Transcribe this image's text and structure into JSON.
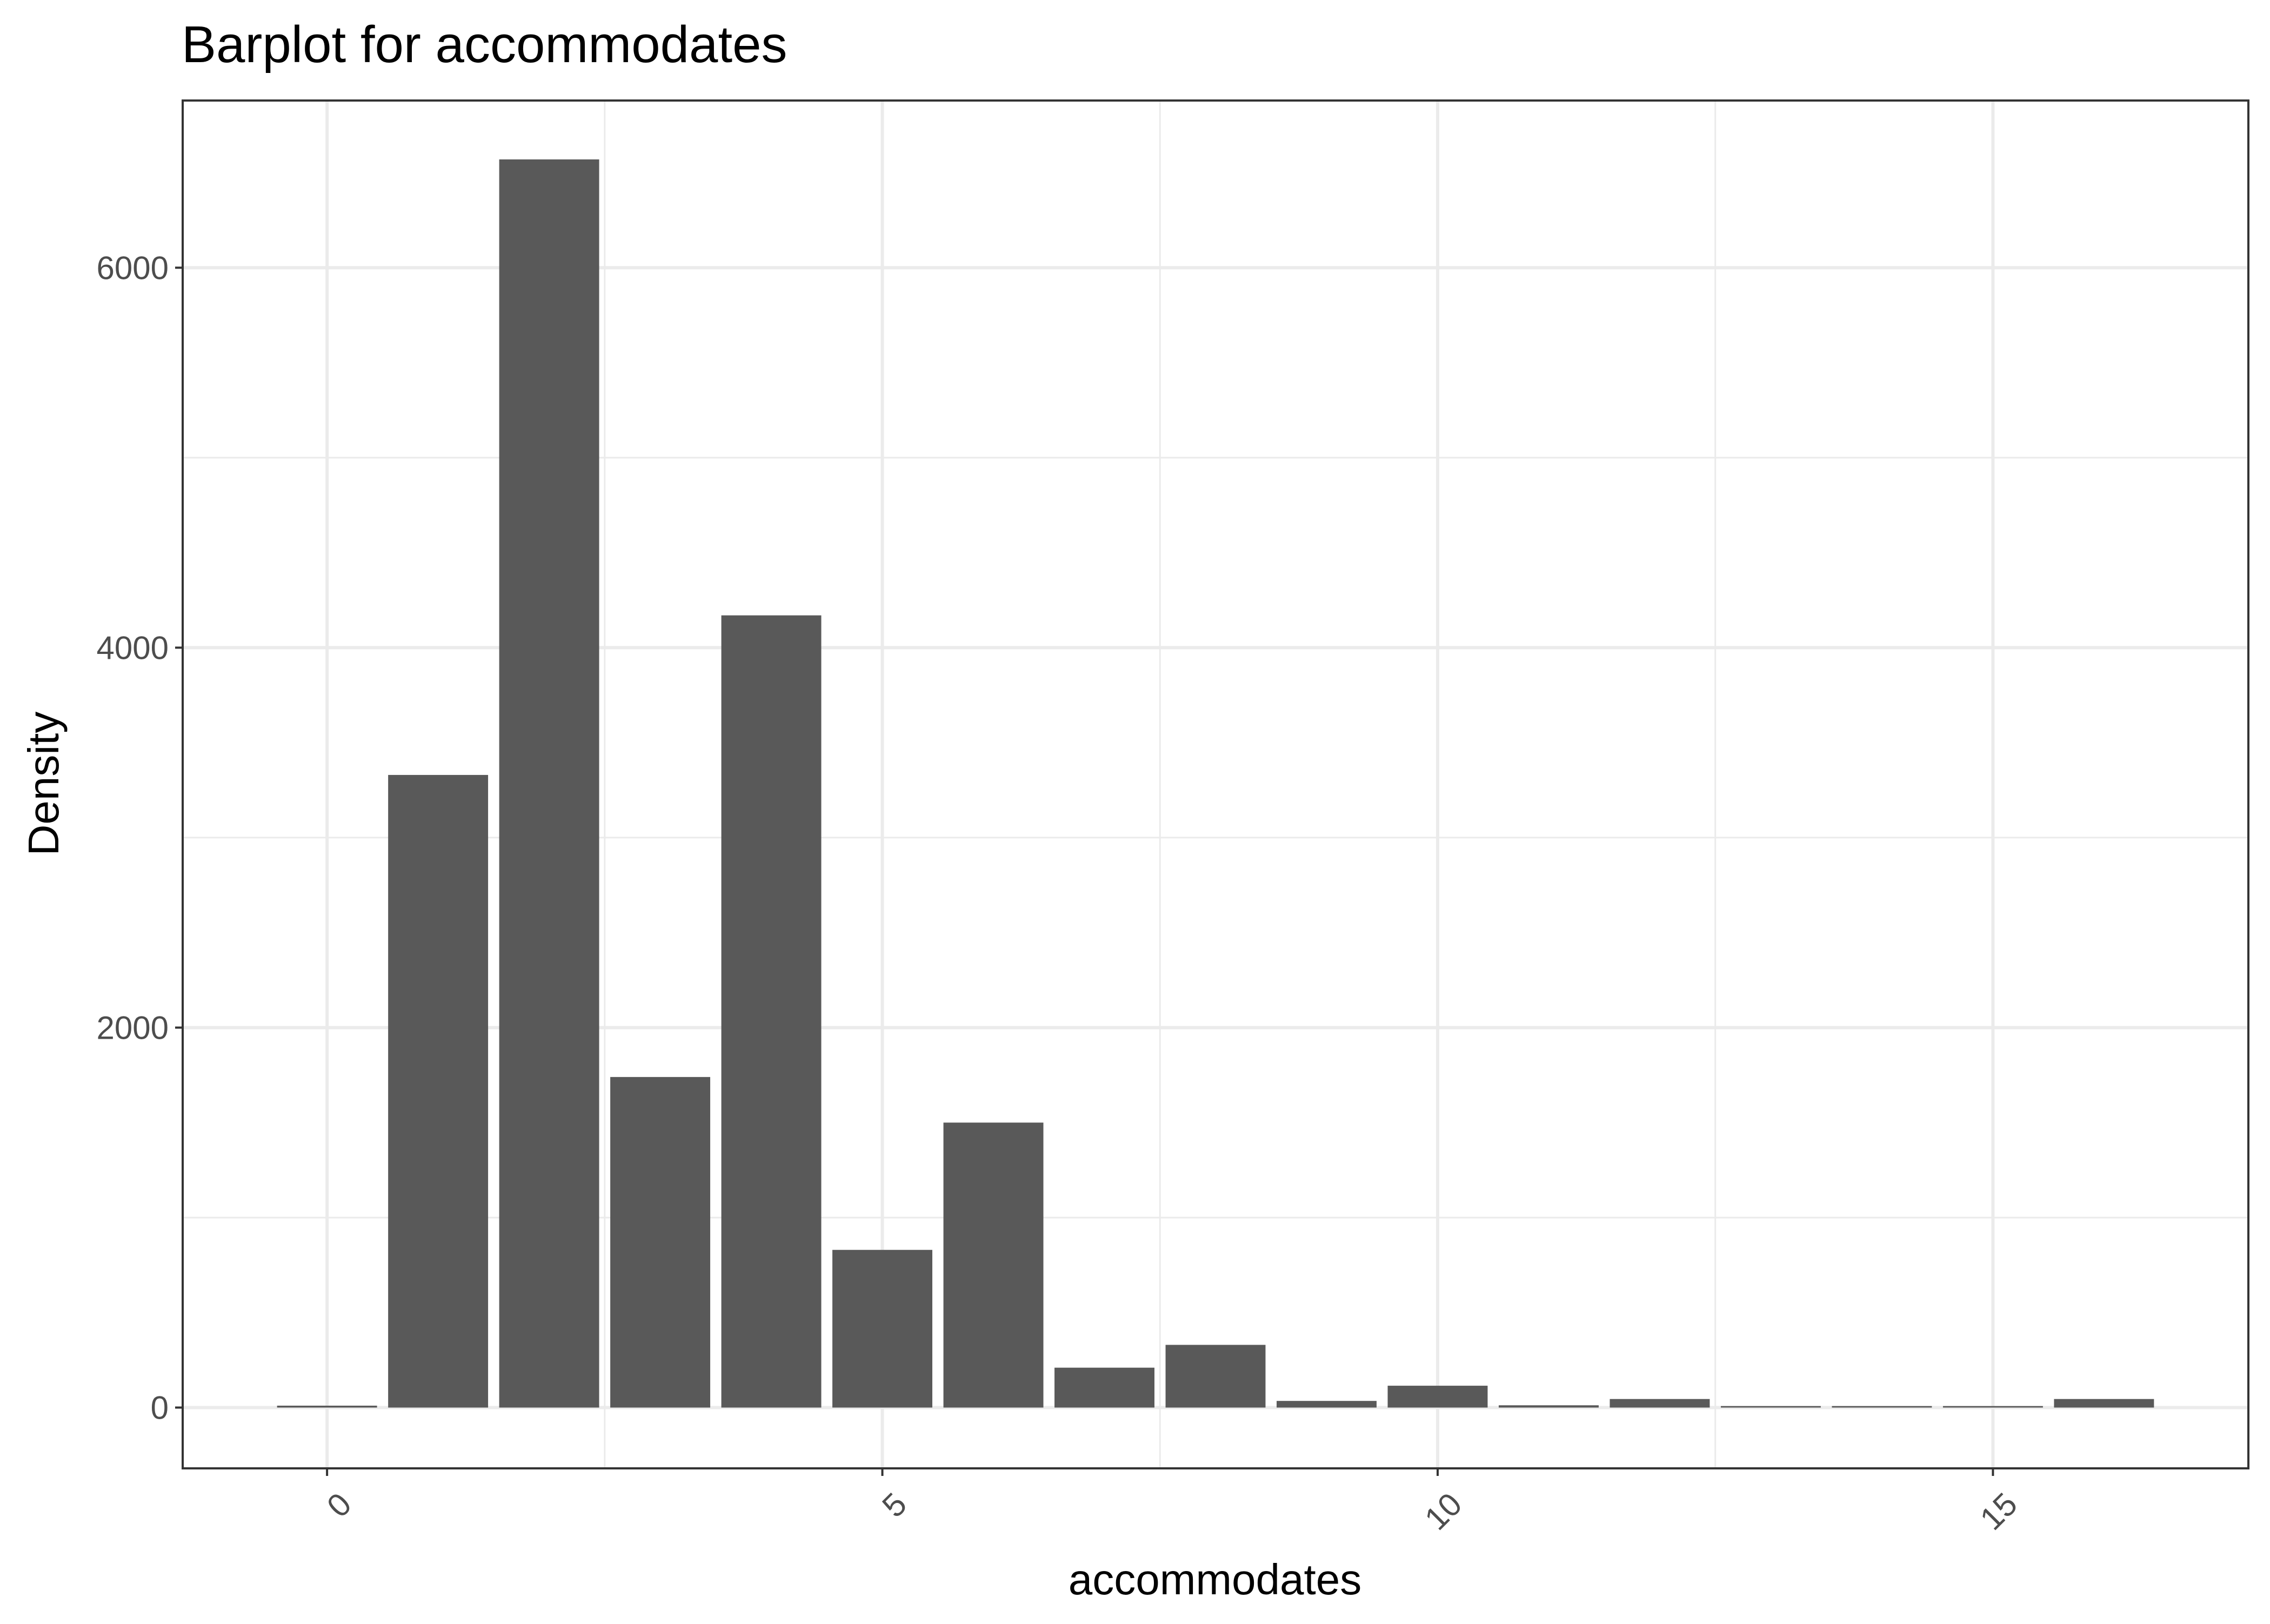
{
  "chart_data": {
    "type": "bar",
    "title": "Barplot for  accommodates",
    "xlabel": "accommodates",
    "ylabel": "Density",
    "x": [
      0,
      1,
      2,
      3,
      4,
      5,
      6,
      7,
      8,
      9,
      10,
      11,
      12,
      13,
      14,
      15,
      16
    ],
    "values": [
      10,
      3330,
      6570,
      1740,
      4170,
      830,
      1500,
      210,
      330,
      35,
      115,
      12,
      45,
      8,
      8,
      8,
      45
    ],
    "xlim": [
      -1.3,
      17.3
    ],
    "ylim": [
      -320,
      6880
    ],
    "x_ticks": [
      "0",
      "5",
      "10",
      "15"
    ],
    "y_ticks": [
      "0",
      "2000",
      "4000",
      "6000"
    ],
    "bar_color": "#595959",
    "grid": true,
    "grid_color": "#ebebeb",
    "panel_border_color": "#333333",
    "background": "#ffffff"
  }
}
